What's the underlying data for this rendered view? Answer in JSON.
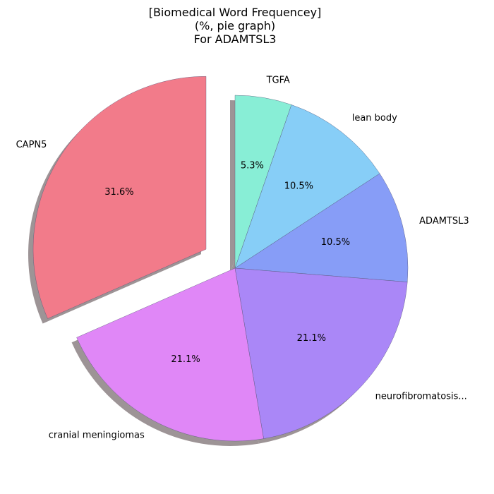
{
  "chart_data": {
    "type": "pie",
    "title_lines": [
      "[Biomedical Word Frequencey]",
      "(%, pie graph)",
      "For ADAMTSL3"
    ],
    "slices": [
      {
        "label": "TGFA",
        "value": 5.3,
        "pct_label": "5.3%",
        "color": "#88EED6"
      },
      {
        "label": "lean body",
        "value": 10.5,
        "pct_label": "10.5%",
        "color": "#87CEF7"
      },
      {
        "label": "ADAMTSL3",
        "value": 10.5,
        "pct_label": "10.5%",
        "color": "#879DF7"
      },
      {
        "label": "neurofibromatosis...",
        "value": 21.1,
        "pct_label": "21.1%",
        "color": "#AA87F7"
      },
      {
        "label": "cranial meningiomas",
        "value": 21.1,
        "pct_label": "21.1%",
        "color": "#E087F7"
      },
      {
        "label": "CAPN5",
        "value": 31.6,
        "pct_label": "31.6%",
        "color": "#F27B8A",
        "exploded": true
      }
    ],
    "start_angle_deg": 90,
    "direction": "clockwise",
    "shadow": true
  }
}
